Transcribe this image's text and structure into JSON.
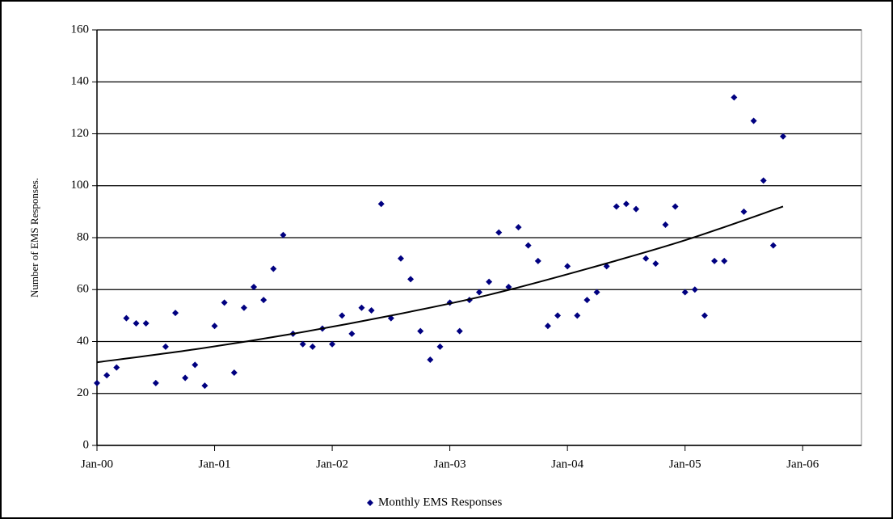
{
  "chart_data": {
    "type": "scatter",
    "y_label": "Number of EMS Responses.",
    "xlim": [
      0,
      78
    ],
    "xticks": [
      {
        "value": 0,
        "label": "Jan-00"
      },
      {
        "value": 12,
        "label": "Jan-01"
      },
      {
        "value": 24,
        "label": "Jan-02"
      },
      {
        "value": 36,
        "label": "Jan-03"
      },
      {
        "value": 48,
        "label": "Jan-04"
      },
      {
        "value": 60,
        "label": "Jan-05"
      },
      {
        "value": 72,
        "label": "Jan-06"
      }
    ],
    "ylim": [
      0,
      160
    ],
    "yticks": [
      0,
      20,
      40,
      60,
      80,
      100,
      120,
      140,
      160
    ],
    "grid": true,
    "legend": "bottom",
    "series": [
      {
        "name": "Monthly EMS Responses",
        "color": "#000080",
        "x": [
          0,
          1,
          2,
          3,
          4,
          5,
          6,
          7,
          8,
          9,
          10,
          11,
          12,
          13,
          14,
          15,
          16,
          17,
          18,
          19,
          20,
          21,
          22,
          23,
          24,
          25,
          26,
          27,
          28,
          29,
          30,
          31,
          32,
          33,
          34,
          35,
          36,
          37,
          38,
          39,
          40,
          41,
          42,
          43,
          44,
          45,
          46,
          47,
          48,
          49,
          50,
          51,
          52,
          53,
          54,
          55,
          56,
          57,
          58,
          59,
          60,
          61,
          62,
          63,
          64,
          65,
          66,
          67,
          68,
          69,
          70
        ],
        "values": [
          24,
          27,
          30,
          49,
          47,
          47,
          24,
          38,
          51,
          26,
          31,
          23,
          46,
          55,
          28,
          53,
          61,
          56,
          68,
          81,
          43,
          39,
          38,
          45,
          39,
          50,
          43,
          53,
          52,
          93,
          49,
          72,
          64,
          44,
          33,
          38,
          55,
          44,
          56,
          59,
          63,
          82,
          61,
          84,
          77,
          71,
          46,
          50,
          69,
          50,
          56,
          59,
          69,
          92,
          93,
          91,
          72,
          70,
          85,
          92,
          59,
          60,
          50,
          71,
          71,
          134,
          90,
          125,
          102,
          77,
          119
        ]
      },
      {
        "mode": "line",
        "color": "#000000",
        "x": [
          0,
          10,
          20,
          30,
          40,
          50,
          60,
          70
        ],
        "values": [
          32,
          37,
          43,
          50,
          58,
          68,
          79,
          92
        ]
      }
    ]
  }
}
